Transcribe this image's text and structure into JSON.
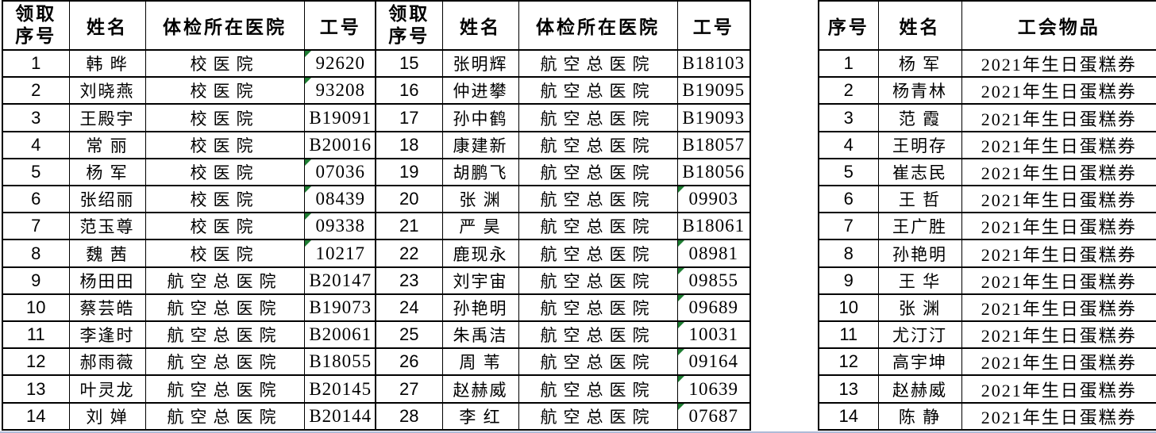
{
  "colors": {
    "grid": "#000000",
    "text": "#000000",
    "flag_triangle": "#1e7d32",
    "bottom_edge_line": "#aebbd7"
  },
  "pickup_table_left": {
    "headers": {
      "no": "领取序号",
      "name": "姓名",
      "hospital": "体检所在医院",
      "id": "工号"
    },
    "rows": [
      {
        "no": "1",
        "name": "韩 晔",
        "hospital": "校医院",
        "id": "92620",
        "flag": true
      },
      {
        "no": "2",
        "name": "刘晓燕",
        "hospital": "校医院",
        "id": "93208",
        "flag": true
      },
      {
        "no": "3",
        "name": "王殿宇",
        "hospital": "校医院",
        "id": "B19091",
        "flag": false
      },
      {
        "no": "4",
        "name": "常 丽",
        "hospital": "校医院",
        "id": "B20016",
        "flag": false
      },
      {
        "no": "5",
        "name": "杨 军",
        "hospital": "校医院",
        "id": "07036",
        "flag": true
      },
      {
        "no": "6",
        "name": "张绍丽",
        "hospital": "校医院",
        "id": "08439",
        "flag": true
      },
      {
        "no": "7",
        "name": "范玉尊",
        "hospital": "校医院",
        "id": "09338",
        "flag": true
      },
      {
        "no": "8",
        "name": "魏 茜",
        "hospital": "校医院",
        "id": "10217",
        "flag": true
      },
      {
        "no": "9",
        "name": "杨田田",
        "hospital": "航空总医院",
        "id": "B20147",
        "flag": false
      },
      {
        "no": "10",
        "name": "蔡芸皓",
        "hospital": "航空总医院",
        "id": "B19073",
        "flag": false
      },
      {
        "no": "11",
        "name": "李逢时",
        "hospital": "航空总医院",
        "id": "B20061",
        "flag": false
      },
      {
        "no": "12",
        "name": "郝雨薇",
        "hospital": "航空总医院",
        "id": "B18055",
        "flag": false
      },
      {
        "no": "13",
        "name": "叶灵龙",
        "hospital": "航空总医院",
        "id": "B20145",
        "flag": false
      },
      {
        "no": "14",
        "name": "刘 婵",
        "hospital": "航空总医院",
        "id": "B20144",
        "flag": false
      }
    ]
  },
  "pickup_table_right": {
    "headers": {
      "no": "领取序号",
      "name": "姓名",
      "hospital": "体检所在医院",
      "id": "工号"
    },
    "rows": [
      {
        "no": "15",
        "name": "张明辉",
        "hospital": "航空总医院",
        "id": "B18103",
        "flag": false
      },
      {
        "no": "16",
        "name": "仲进攀",
        "hospital": "航空总医院",
        "id": "B19095",
        "flag": false
      },
      {
        "no": "17",
        "name": "孙中鹤",
        "hospital": "航空总医院",
        "id": "B19093",
        "flag": false
      },
      {
        "no": "18",
        "name": "康建新",
        "hospital": "航空总医院",
        "id": "B18057",
        "flag": false
      },
      {
        "no": "19",
        "name": "胡鹏飞",
        "hospital": "航空总医院",
        "id": "B18056",
        "flag": false
      },
      {
        "no": "20",
        "name": "张 渊",
        "hospital": "航空总医院",
        "id": "09903",
        "flag": true
      },
      {
        "no": "21",
        "name": "严 昊",
        "hospital": "航空总医院",
        "id": "B18061",
        "flag": false
      },
      {
        "no": "22",
        "name": "鹿现永",
        "hospital": "航空总医院",
        "id": "08981",
        "flag": true
      },
      {
        "no": "23",
        "name": "刘宇宙",
        "hospital": "航空总医院",
        "id": "09855",
        "flag": true
      },
      {
        "no": "24",
        "name": "孙艳明",
        "hospital": "航空总医院",
        "id": "09689",
        "flag": true
      },
      {
        "no": "25",
        "name": "朱禹洁",
        "hospital": "航空总医院",
        "id": "10031",
        "flag": true
      },
      {
        "no": "26",
        "name": "周 苇",
        "hospital": "航空总医院",
        "id": "09164",
        "flag": true
      },
      {
        "no": "27",
        "name": "赵赫威",
        "hospital": "航空总医院",
        "id": "10639",
        "flag": true
      },
      {
        "no": "28",
        "name": "李 红",
        "hospital": "航空总医院",
        "id": "07687",
        "flag": true
      }
    ]
  },
  "union_table": {
    "headers": {
      "no": "序号",
      "name": "姓名",
      "item": "工会物品"
    },
    "rows": [
      {
        "no": "1",
        "name": "杨 军",
        "item": "2021年生日蛋糕券"
      },
      {
        "no": "2",
        "name": "杨青林",
        "item": "2021年生日蛋糕券"
      },
      {
        "no": "3",
        "name": "范 霞",
        "item": "2021年生日蛋糕券"
      },
      {
        "no": "4",
        "name": "王明存",
        "item": "2021年生日蛋糕券"
      },
      {
        "no": "5",
        "name": "崔志民",
        "item": "2021年生日蛋糕券"
      },
      {
        "no": "6",
        "name": "王 哲",
        "item": "2021年生日蛋糕券"
      },
      {
        "no": "7",
        "name": "王广胜",
        "item": "2021年生日蛋糕券"
      },
      {
        "no": "8",
        "name": "孙艳明",
        "item": "2021年生日蛋糕券"
      },
      {
        "no": "9",
        "name": "王 华",
        "item": "2021年生日蛋糕券"
      },
      {
        "no": "10",
        "name": "张 渊",
        "item": "2021年生日蛋糕券"
      },
      {
        "no": "11",
        "name": "尤汀汀",
        "item": "2021年生日蛋糕券"
      },
      {
        "no": "12",
        "name": "高宇坤",
        "item": "2021年生日蛋糕券"
      },
      {
        "no": "13",
        "name": "赵赫威",
        "item": "2021年生日蛋糕券"
      },
      {
        "no": "14",
        "name": "陈 静",
        "item": "2021年生日蛋糕券"
      }
    ]
  }
}
